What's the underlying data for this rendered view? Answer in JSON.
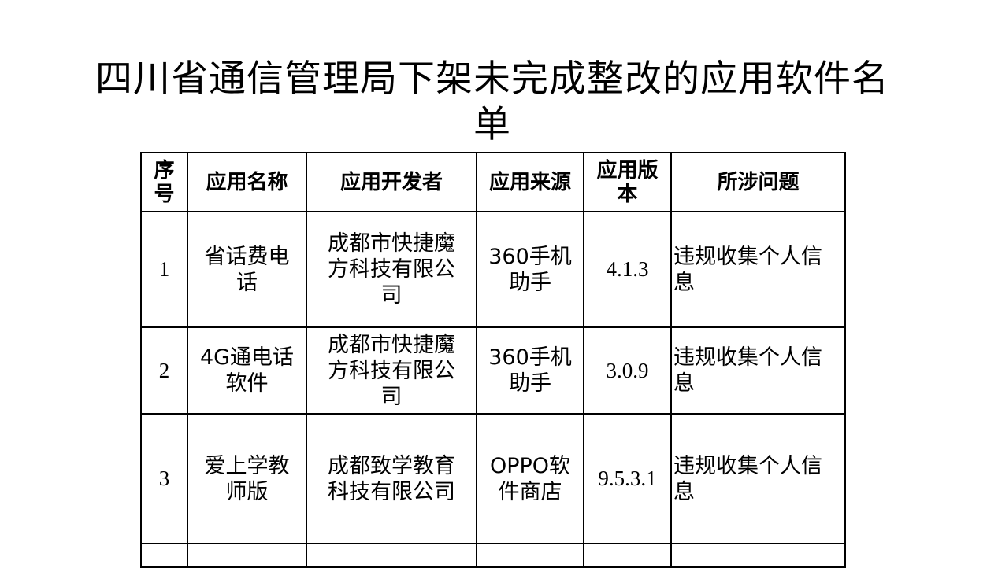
{
  "title": "四川省通信管理局下架未完成整改的应用软件名单",
  "table": {
    "headers": [
      "序号",
      "应用名称",
      "应用开发者",
      "应用来源",
      "应用版本",
      "所涉问题"
    ],
    "rows": [
      {
        "no": "1",
        "name": "省话费电话",
        "developer": "成都市快捷魔方科技有限公司",
        "source": "360手机助手",
        "version": "4.1.3",
        "issue": "违规收集个人信息"
      },
      {
        "no": "2",
        "name": "4G通电话软件",
        "developer": "成都市快捷魔方科技有限公司",
        "source": "360手机助手",
        "version": "3.0.9",
        "issue": "违规收集个人信息"
      },
      {
        "no": "3",
        "name": "爱上学教师版",
        "developer": "成都致学教育科技有限公司",
        "source": "OPPO软件商店",
        "version": "9.5.3.1",
        "issue": "违规收集个人信息"
      }
    ]
  }
}
